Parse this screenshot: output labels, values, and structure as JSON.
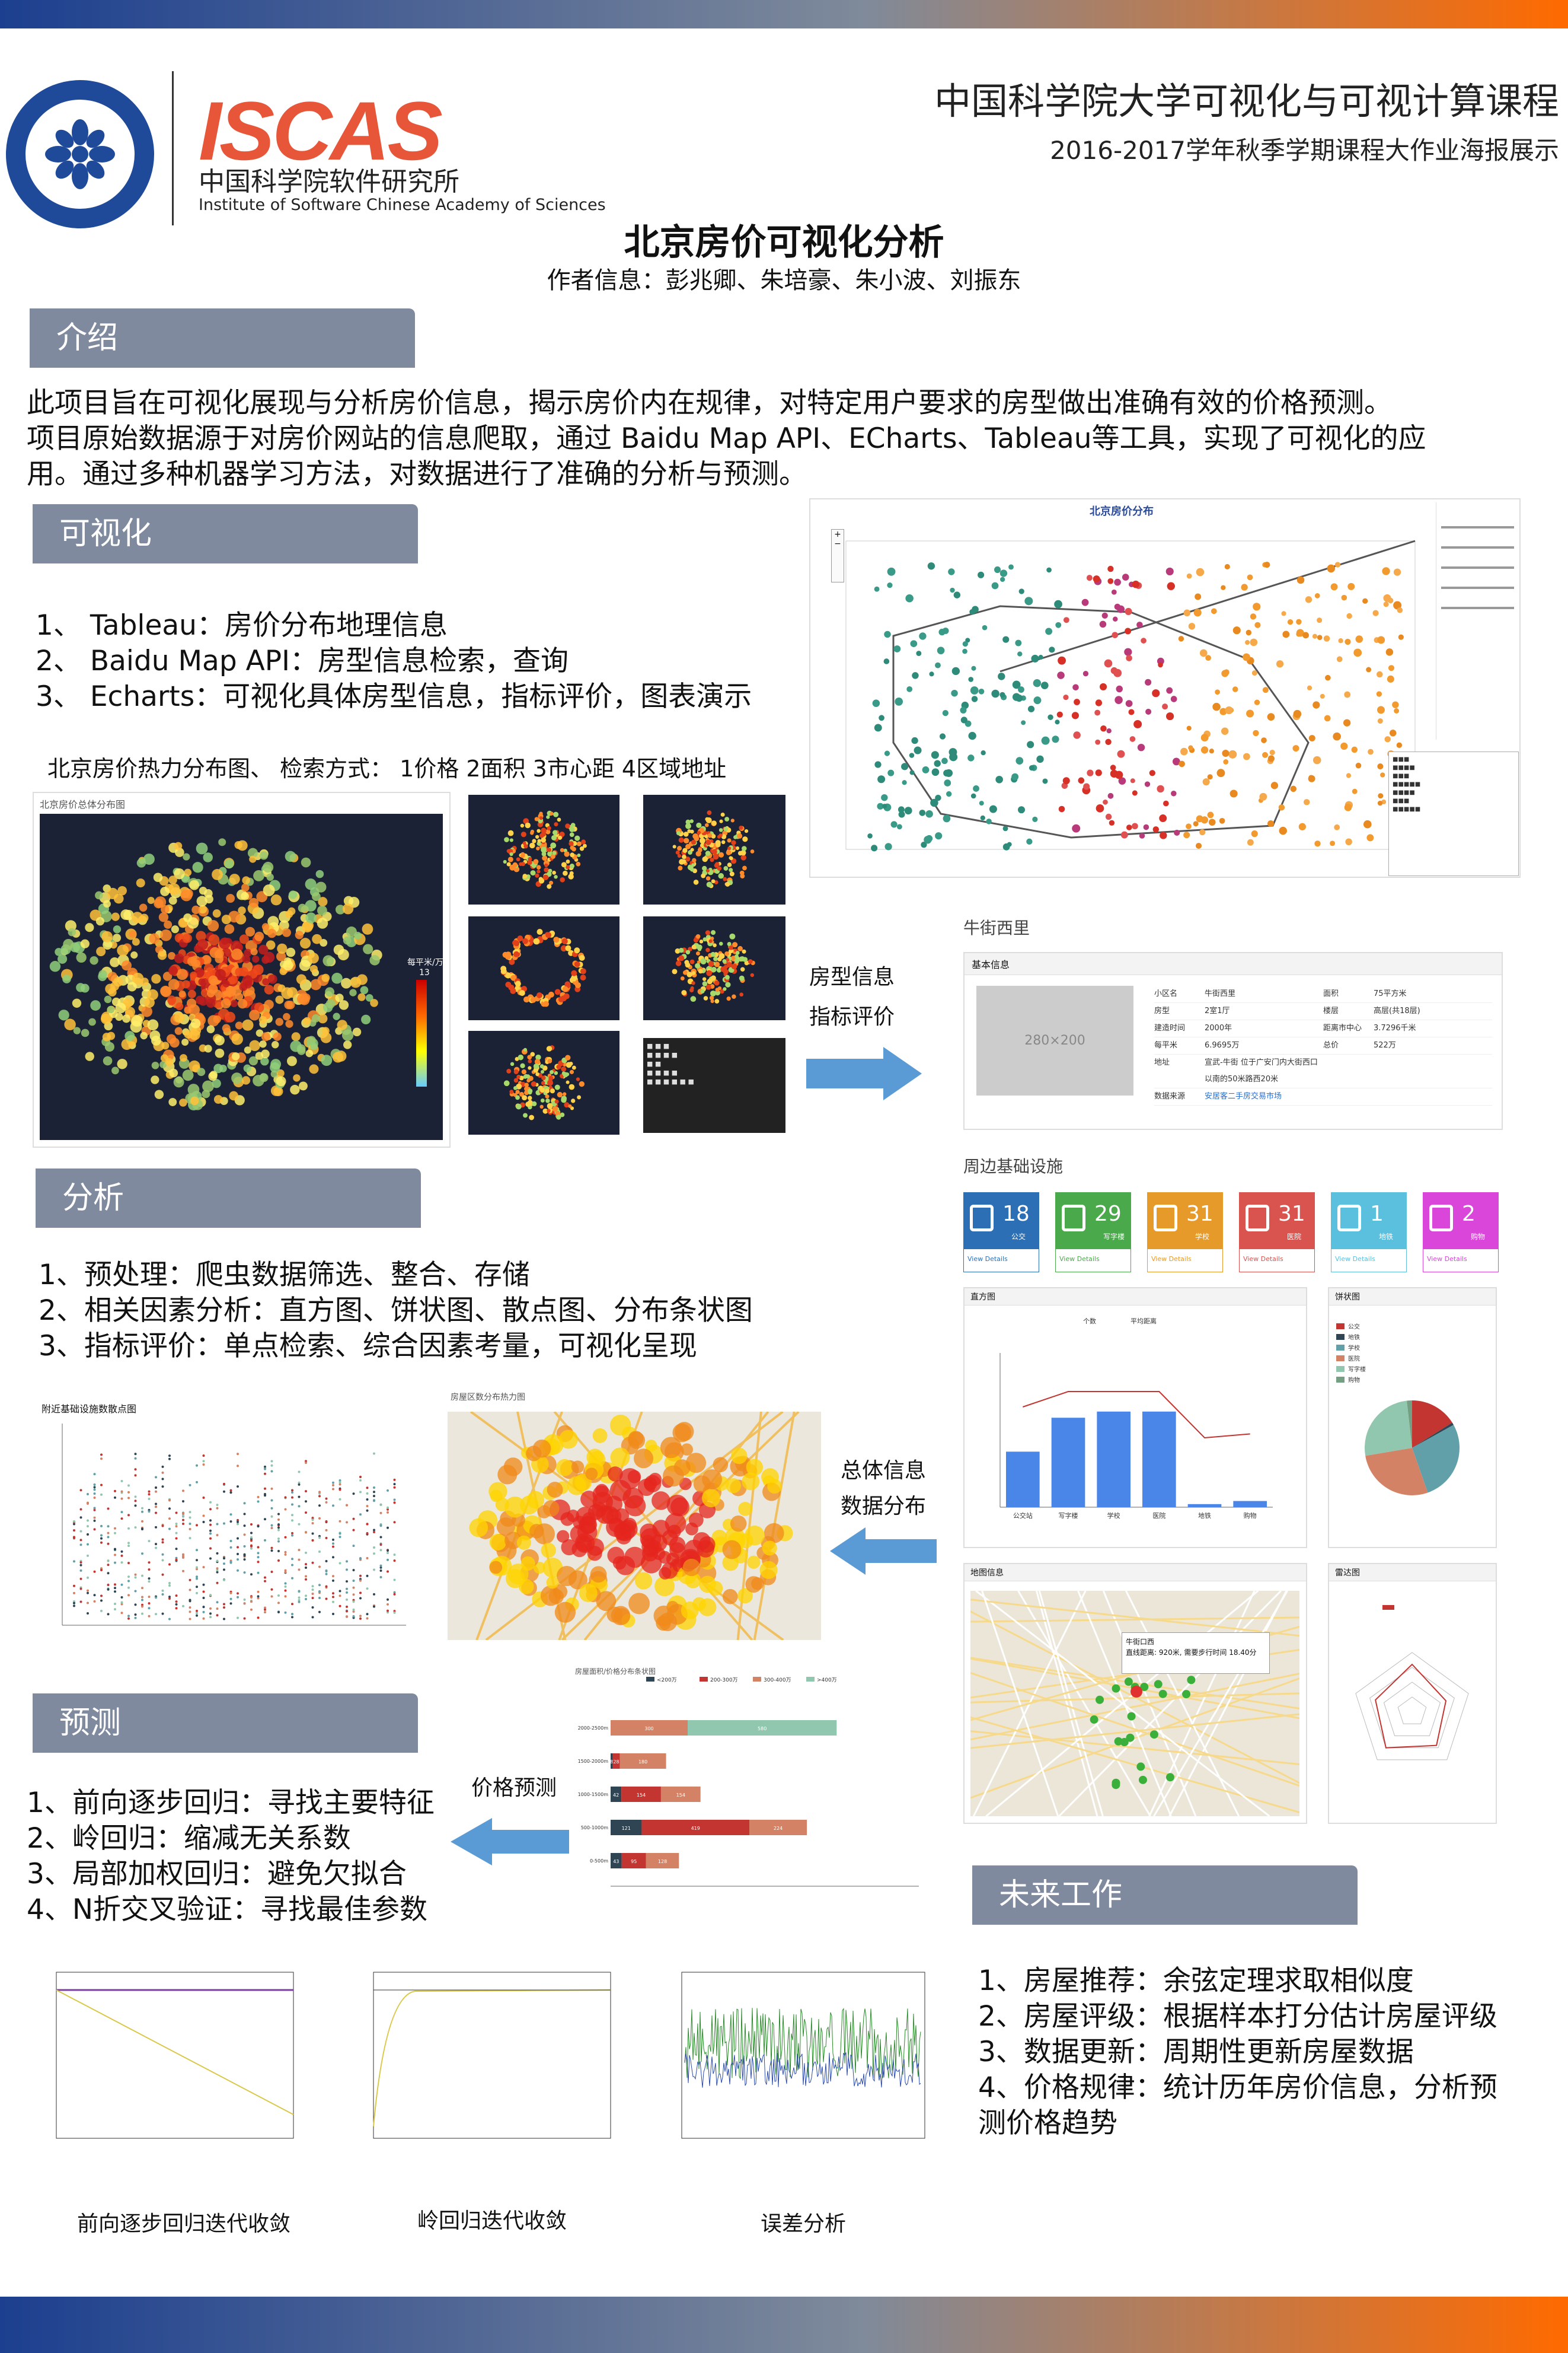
{
  "header": {
    "logo_cas_alt": "中国科学院",
    "iscas_logo": "ISCAS",
    "inst_cn": "中国科学院软件研究所",
    "inst_en": "Institute of Software Chinese Academy of Sciences",
    "course_title": "中国科学院大学可视化与可视计算课程",
    "course_sub": "2016-2017学年秋季学期课程大作业海报展示"
  },
  "title": {
    "main": "北京房价可视化分析",
    "authors": "作者信息：彭兆卿、朱培豪、朱小波、刘振东"
  },
  "intro": {
    "heading": "介绍",
    "lines": [
      "此项目旨在可视化展现与分析房价信息，揭示房价内在规律，对特定用户要求的房型做出准确有效的价格预测。",
      "项目原始数据源于对房价网站的信息爬取，通过 Baidu Map API、ECharts、Tableau等工具，实现了可视化的应",
      "用。通过多种机器学习方法，对数据进行了准确的分析与预测。"
    ]
  },
  "visual": {
    "heading": "可视化",
    "items": [
      "1、 Tableau：房价分布地理信息",
      "2、 Baidu Map API：房型信息检索，查询",
      "3、 Echarts：可视化具体房型信息，指标评价，图表演示"
    ],
    "heatmap_caption": "北京房价热力分布图、 检索方式： 1价格 2面积 3市心距 4区域地址",
    "heatmap_panel_title": "北京房价总体分布图",
    "legend_label": "每平米/万",
    "legend_max": "13",
    "tableau_title": "北京房价分布",
    "arrow_label_1": "房型信息",
    "arrow_label_2": "指标评价"
  },
  "detail": {
    "place": "牛街西里",
    "basic_info": "基本信息",
    "photo_placeholder": "280×200",
    "rows": [
      [
        "小区名",
        "牛街西里",
        "面积",
        "75平方米"
      ],
      [
        "房型",
        "2室1厅",
        "楼层",
        "高层(共18层)"
      ],
      [
        "建造时间",
        "2000年",
        "距离市中心",
        "3.7296千米"
      ],
      [
        "每平米",
        "6.9695万",
        "总价",
        "522万"
      ],
      [
        "地址",
        "宣武-牛街 位于广安门内大街西口以南的50米路西20米",
        "",
        ""
      ],
      [
        "数据来源",
        "安居客二手房交易市场",
        "",
        ""
      ]
    ],
    "facilities_title": "周边基础设施",
    "facilities": [
      {
        "num": "18",
        "sub": "公交",
        "color": "#2c6fb4",
        "icon": "bus-icon"
      },
      {
        "num": "29",
        "sub": "写字楼",
        "color": "#4aa94a",
        "icon": "building-icon"
      },
      {
        "num": "31",
        "sub": "学校",
        "color": "#e69a2a",
        "icon": "school-icon"
      },
      {
        "num": "31",
        "sub": "医院",
        "color": "#d9534f",
        "icon": "heart-icon"
      },
      {
        "num": "1",
        "sub": "地铁",
        "color": "#5bc0de",
        "icon": "train-icon"
      },
      {
        "num": "2",
        "sub": "购物",
        "color": "#d946d9",
        "icon": "cart-icon"
      }
    ],
    "view_details": "View Details",
    "bar_panel": "直方图",
    "pie_panel": "饼状图",
    "map_panel": "地图信息",
    "radar_panel": "雷达图",
    "map_popup_1": "牛街口西",
    "map_popup_2": "直线距离: 920米, 需要步行时间 18.40分"
  },
  "analysis": {
    "heading": "分析",
    "items": [
      "1、预处理：爬虫数据筛选、整合、存储",
      "2、相关因素分析：直方图、饼状图、散点图、分布条状图",
      "3、指标评价：单点检索、综合因素考量，可视化呈现"
    ],
    "scatter_title": "附近基础设施数散点图",
    "heat_title": "房屋区数分布热力图",
    "arrow_label_1": "总体信息",
    "arrow_label_2": "数据分布",
    "stacked_title": "房屋面积/价格分布条状图"
  },
  "predict": {
    "heading": "预测",
    "items": [
      "1、前向逐步回归：寻找主要特征",
      "2、岭回归：缩减无关系数",
      "3、局部加权回归：避免欠拟合",
      "4、N折交叉验证：寻找最佳参数"
    ],
    "arrow_label": "价格预测",
    "captions": [
      "前向逐步回归迭代收敛",
      "岭回归迭代收敛",
      "误差分析"
    ]
  },
  "future": {
    "heading": "未来工作",
    "items": [
      "1、房屋推荐：余弦定理求取相似度",
      "2、房屋评级：根据样本打分估计房屋评级",
      "3、数据更新：周期性更新房屋数据",
      "4、价格规律：统计历年房价信息，分析预",
      "测价格趋势"
    ]
  },
  "chart_data": [
    {
      "type": "bar",
      "title": "直方图",
      "categories": [
        "公交站",
        "写字楼",
        "学校",
        "医院",
        "地铁",
        "购物"
      ],
      "series": [
        {
          "name": "个数",
          "values": [
            18,
            29,
            31,
            31,
            1,
            2
          ]
        },
        {
          "name": "平均距离",
          "values": [
            520,
            600,
            600,
            600,
            360,
            380
          ]
        }
      ],
      "ylim": [
        0,
        50
      ]
    },
    {
      "type": "pie",
      "title": "饼状图",
      "categories": [
        "公交",
        "地铁",
        "学校",
        "医院",
        "写字楼",
        "购物"
      ],
      "values": [
        18,
        1,
        31,
        31,
        29,
        2
      ],
      "colors": [
        "#c23531",
        "#2f4554",
        "#61a0a8",
        "#d48265",
        "#91c7ae",
        "#749f83"
      ]
    },
    {
      "type": "bar",
      "title": "房屋面积/价格分布条状图",
      "categories": [
        "2000-2500m",
        "1500-2000m",
        "1000-1500m",
        "500-1000m",
        "0-500m"
      ],
      "series": [
        {
          "name": "<200万",
          "values": [
            0,
            8,
            42,
            121,
            43
          ]
        },
        {
          "name": "200-300万",
          "values": [
            0,
            28,
            154,
            419,
            95
          ]
        },
        {
          "name": "300-400万",
          "values": [
            300,
            180,
            154,
            224,
            128
          ]
        },
        {
          "name": ">400万",
          "values": [
            580,
            0,
            0,
            0,
            0
          ]
        }
      ],
      "xlim": [
        0,
        1200
      ]
    }
  ]
}
